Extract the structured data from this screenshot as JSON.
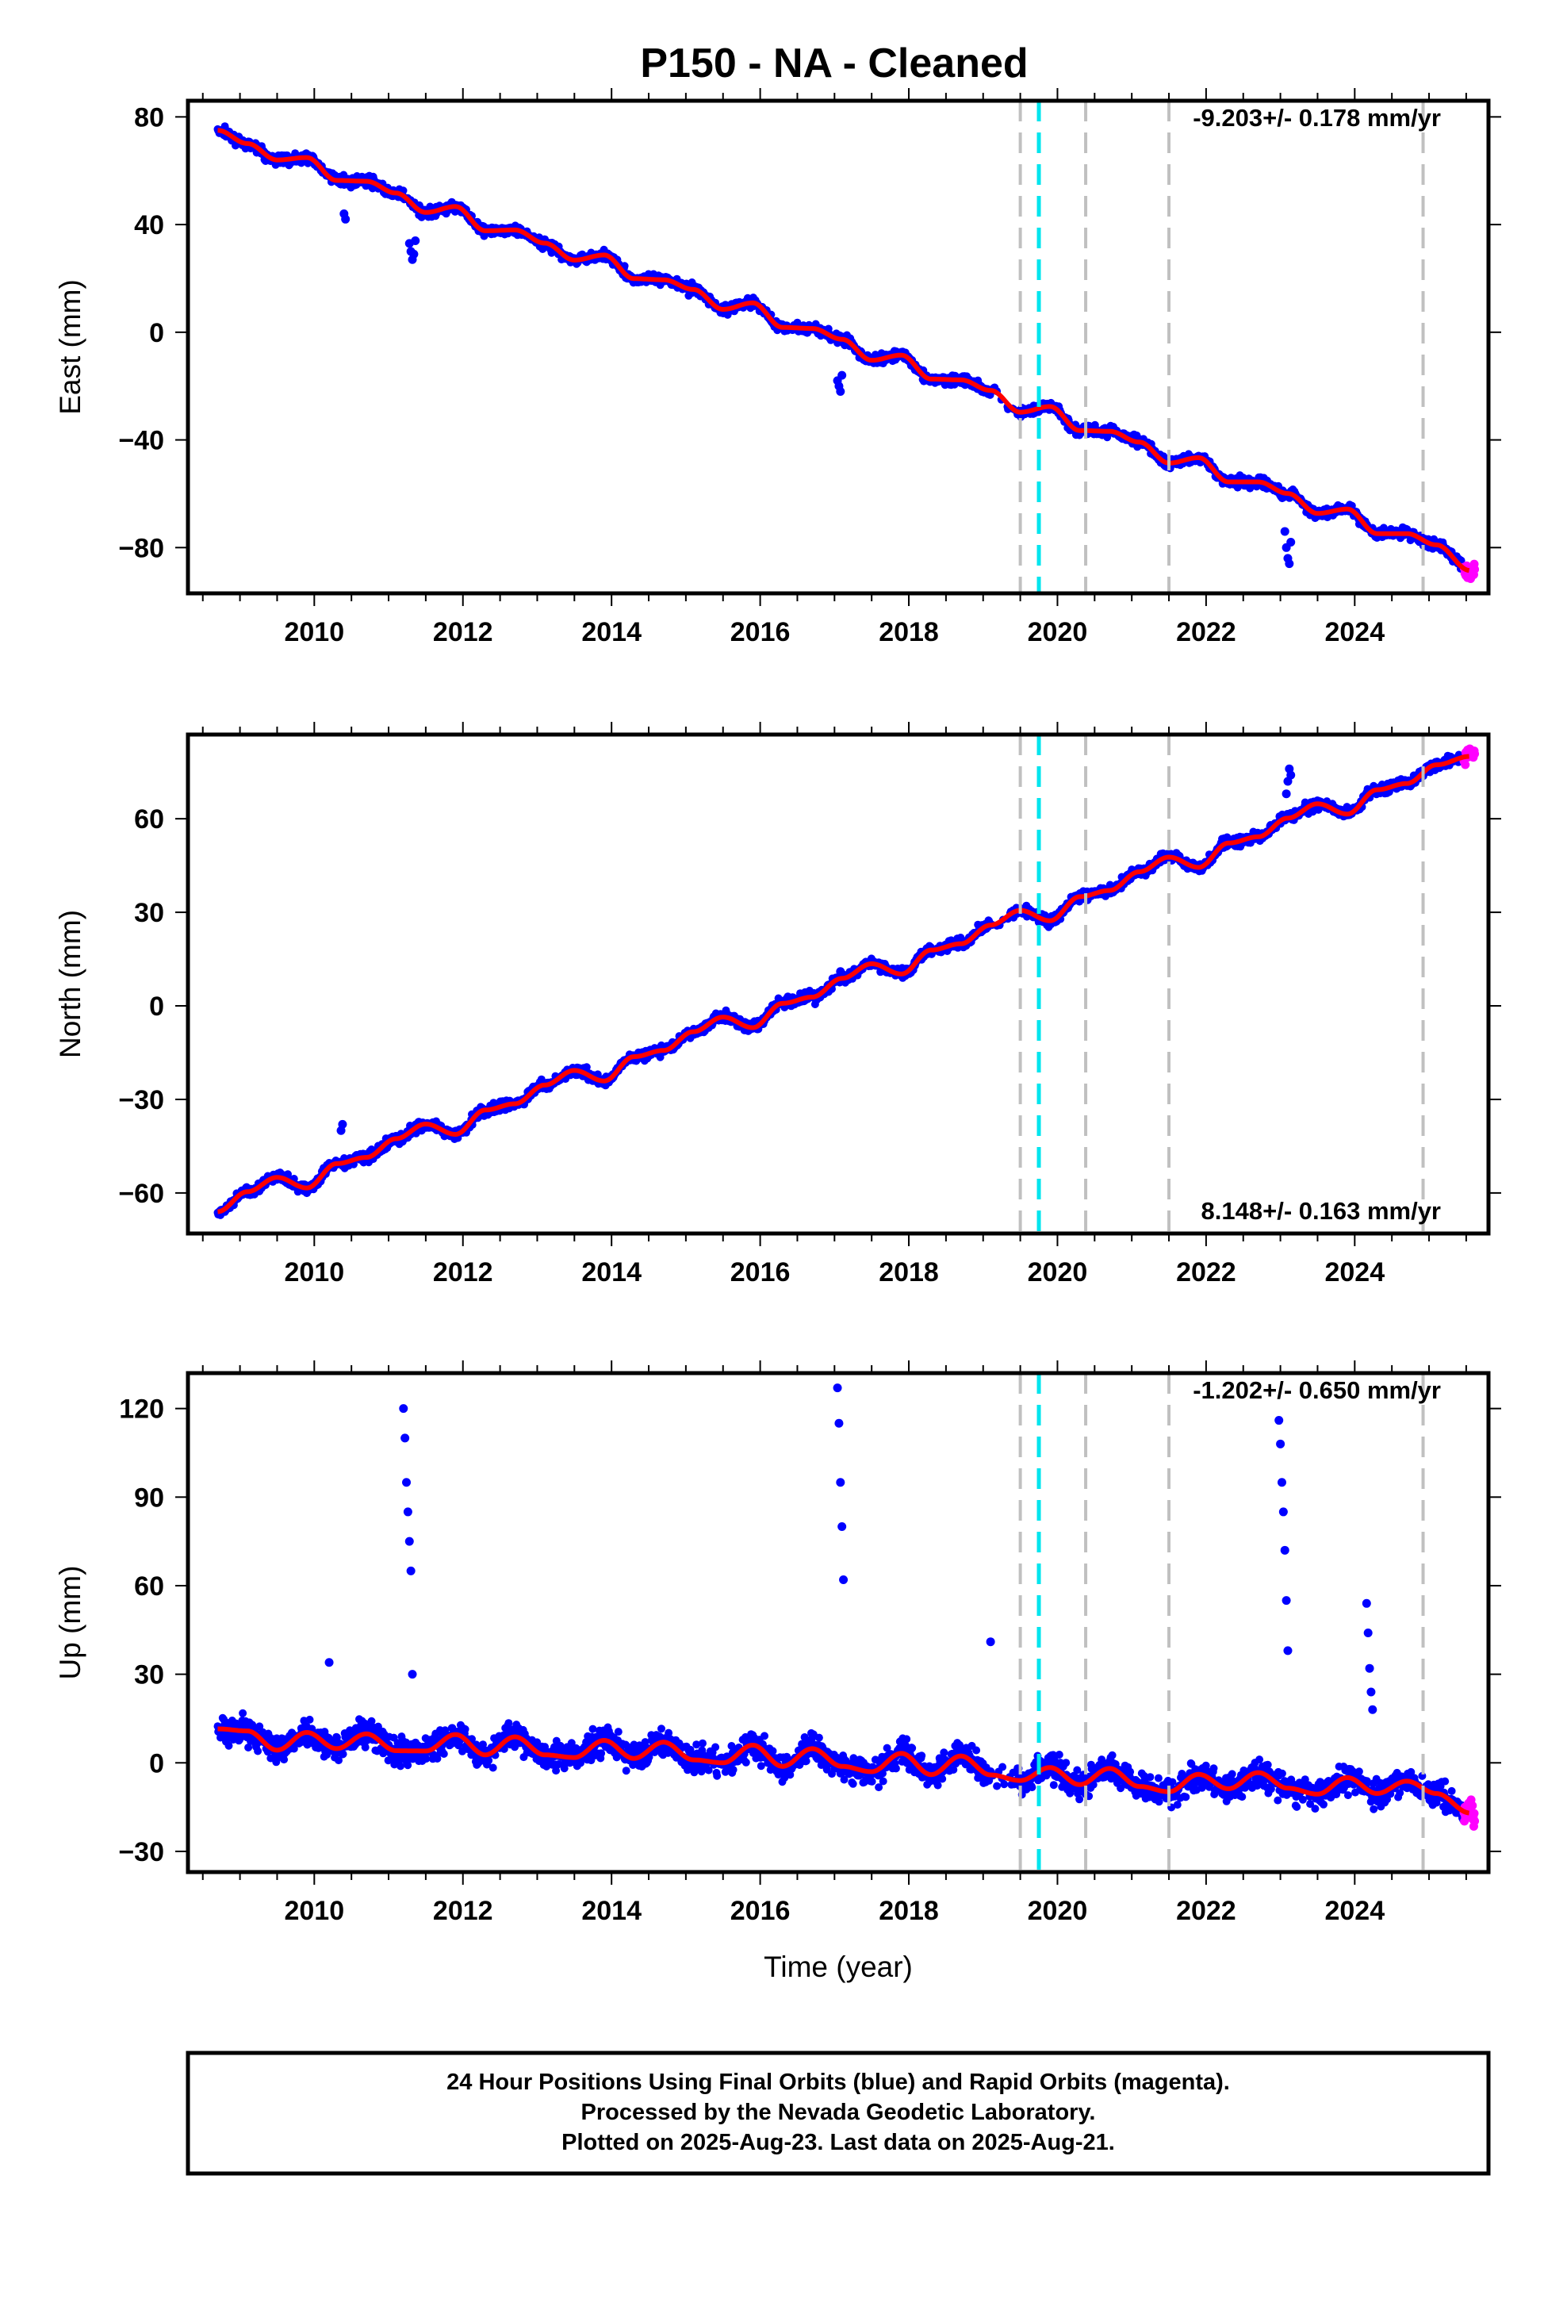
{
  "title": "P150  - NA - Cleaned",
  "colors": {
    "final_orbits": "#0000ff",
    "rapid_orbits": "#ff00ff",
    "model": "#ff0000",
    "antenna_change": "#00e5ee",
    "event_lines": "#c0c0c0"
  },
  "footer": {
    "line1": "24 Hour Positions Using Final Orbits (blue) and Rapid Orbits (magenta).",
    "line2": "Processed by the Nevada Geodetic Laboratory.",
    "line3": "Plotted on 2025-Aug-23. Last data on 2025-Aug-21."
  },
  "chart_data": [
    {
      "type": "scatter",
      "panel": "east",
      "ylabel": "East (mm)",
      "xlabel": "",
      "rate_label": "-9.203+/- 0.178 mm/yr",
      "rate_position": "top-right",
      "xlim": [
        2008.3,
        2025.8
      ],
      "ylim": [
        -97,
        86
      ],
      "xticks": [
        2010,
        2012,
        2014,
        2016,
        2018,
        2020,
        2022,
        2024
      ],
      "yticks": [
        80,
        40,
        0,
        -40,
        -80
      ],
      "ytick_labels": [
        "80",
        "40",
        "0",
        "−40",
        "−80"
      ],
      "series": [
        {
          "x": [
            2008.7,
            2009.1,
            2009.5,
            2009.9,
            2010.3,
            2010.7,
            2011.1,
            2011.5,
            2011.9,
            2012.3,
            2012.7,
            2013.1,
            2013.5,
            2013.9,
            2014.3,
            2014.7,
            2015.1,
            2015.5,
            2015.9,
            2016.3,
            2016.7,
            2017.1,
            2017.5,
            2017.9,
            2018.3,
            2018.7,
            2019.1,
            2019.5,
            2019.9,
            2020.3,
            2020.7,
            2021.1,
            2021.5,
            2021.9,
            2022.3,
            2022.7,
            2023.1,
            2023.5,
            2023.9,
            2024.3,
            2024.7,
            2025.1,
            2025.55
          ],
          "values": [
            75.0,
            70.1,
            64.0,
            64.9,
            56.4,
            56.1,
            51.7,
            44.5,
            46.7,
            37.7,
            38.0,
            33.1,
            26.8,
            28.7,
            19.9,
            19.5,
            15.9,
            8.5,
            10.9,
            1.8,
            1.4,
            -2.6,
            -10.4,
            -8.5,
            -17.4,
            -17.7,
            -21.6,
            -29.7,
            -27.6,
            -36.5,
            -36.8,
            -40.8,
            -48.6,
            -46.6,
            -55.6,
            -55.6,
            -59.9,
            -67.3,
            -65.7,
            -74.8,
            -74.8,
            -79.0,
            -88.5
          ]
        },
        {
          "x": [
            2011.28,
            2011.3,
            2011.32,
            2011.34,
            2011.36,
            2017.04,
            2017.06,
            2017.08,
            2017.1,
            2023.06,
            2023.08,
            2023.1,
            2023.12,
            2023.14,
            2010.4,
            2010.42
          ],
          "values": [
            33.0,
            30.0,
            27.0,
            29.0,
            34.0,
            -18.0,
            -20.0,
            -22.0,
            -16.0,
            -74.0,
            -80.0,
            -84.0,
            -86.0,
            -78.0,
            44.0,
            42.0
          ]
        }
      ]
    },
    {
      "type": "scatter",
      "panel": "north",
      "ylabel": "North (mm)",
      "xlabel": "",
      "rate_label": "8.148+/- 0.163 mm/yr",
      "rate_position": "bottom-right",
      "xlim": [
        2008.3,
        2025.8
      ],
      "ylim": [
        -73,
        87
      ],
      "xticks": [
        2010,
        2012,
        2014,
        2016,
        2018,
        2020,
        2022,
        2024
      ],
      "yticks": [
        60,
        30,
        0,
        -30,
        -60
      ],
      "ytick_labels": [
        "60",
        "30",
        "0",
        "−30",
        "−60"
      ],
      "series": [
        {
          "x": [
            2008.7,
            2009.1,
            2009.5,
            2009.9,
            2010.3,
            2010.7,
            2011.1,
            2011.5,
            2011.9,
            2012.3,
            2012.7,
            2013.1,
            2013.5,
            2013.9,
            2014.3,
            2014.7,
            2015.1,
            2015.5,
            2015.9,
            2016.3,
            2016.7,
            2017.1,
            2017.5,
            2017.9,
            2018.3,
            2018.7,
            2019.1,
            2019.5,
            2019.9,
            2020.3,
            2020.7,
            2021.1,
            2021.5,
            2021.9,
            2022.3,
            2022.7,
            2023.1,
            2023.5,
            2023.9,
            2024.3,
            2024.7,
            2025.1,
            2025.55
          ],
          "values": [
            -66.0,
            -59.6,
            -55.0,
            -58.4,
            -50.6,
            -48.6,
            -42.6,
            -37.9,
            -41.2,
            -33.4,
            -31.4,
            -25.4,
            -20.7,
            -24.1,
            -16.3,
            -14.3,
            -8.3,
            -3.6,
            -7.0,
            0.8,
            2.8,
            8.8,
            13.5,
            10.2,
            17.9,
            19.9,
            25.9,
            30.6,
            27.3,
            35.0,
            37.0,
            43.0,
            47.7,
            44.4,
            52.2,
            54.2,
            60.2,
            64.8,
            61.5,
            69.3,
            71.3,
            77.3,
            80.0
          ]
        },
        {
          "x": [
            2023.08,
            2023.1,
            2023.12,
            2023.14,
            2017.06,
            2017.08,
            2010.36,
            2010.38
          ],
          "values": [
            68.0,
            72.0,
            76.0,
            74.0,
            8.0,
            11.0,
            -40.0,
            -38.0
          ]
        }
      ]
    },
    {
      "type": "scatter",
      "panel": "up",
      "ylabel": "Up (mm)",
      "xlabel": "Time (year)",
      "rate_label": "-1.202+/- 0.650 mm/yr",
      "rate_position": "top-right",
      "xlim": [
        2008.3,
        2025.8
      ],
      "ylim": [
        -37,
        132
      ],
      "xticks": [
        2010,
        2012,
        2014,
        2016,
        2018,
        2020,
        2022,
        2024
      ],
      "yticks": [
        120,
        90,
        60,
        30,
        0,
        -30
      ],
      "ytick_labels": [
        "120",
        "90",
        "60",
        "30",
        "0",
        "−30"
      ],
      "series": [
        {
          "x": [
            2008.7,
            2009.1,
            2009.5,
            2009.9,
            2010.3,
            2010.7,
            2011.1,
            2011.5,
            2011.9,
            2012.3,
            2012.7,
            2013.1,
            2013.5,
            2013.9,
            2014.3,
            2014.7,
            2015.1,
            2015.5,
            2015.9,
            2016.3,
            2016.7,
            2017.1,
            2017.5,
            2017.9,
            2018.3,
            2018.7,
            2019.1,
            2019.5,
            2019.9,
            2020.3,
            2020.7,
            2021.1,
            2021.5,
            2021.9,
            2022.3,
            2022.7,
            2023.1,
            2023.5,
            2023.9,
            2024.3,
            2024.7,
            2025.1,
            2025.55
          ],
          "values": [
            11.5,
            10.8,
            4.3,
            10.3,
            4.8,
            9.8,
            4.1,
            4.0,
            9.6,
            2.7,
            8.8,
            2.7,
            1.8,
            7.6,
            1.5,
            7.0,
            1.0,
            0.0,
            6.0,
            -1.2,
            4.8,
            -1.2,
            -3.0,
            3.2,
            -4.0,
            2.3,
            -4.1,
            -6.0,
            -1.6,
            -7.4,
            -1.9,
            -8.0,
            -9.8,
            -3.9,
            -8.8,
            -3.3,
            -8.6,
            -10.6,
            -5.0,
            -10.4,
            -6.2,
            -10.4,
            -17.0
          ]
        },
        {
          "x": [
            2011.2,
            2011.22,
            2011.24,
            2011.26,
            2011.28,
            2011.3,
            2011.32,
            2017.04,
            2017.06,
            2017.08,
            2017.1,
            2017.12,
            2022.98,
            2023.0,
            2023.02,
            2023.04,
            2023.06,
            2023.08,
            2023.1,
            2024.16,
            2024.18,
            2024.2,
            2024.22,
            2024.24,
            2019.1,
            2010.2
          ],
          "values": [
            120.0,
            110.0,
            95.0,
            85.0,
            75.0,
            65.0,
            30.0,
            127.0,
            115.0,
            95.0,
            80.0,
            62.0,
            116.0,
            108.0,
            95.0,
            85.0,
            72.0,
            55.0,
            38.0,
            54.0,
            44.0,
            32.0,
            24.0,
            18.0,
            41.0,
            34.0
          ]
        }
      ]
    }
  ],
  "panels": [
    {
      "ylabel": "East (mm)",
      "rate": "-9.203+/- 0.178 mm/yr"
    },
    {
      "ylabel": "North (mm)",
      "rate": "8.148+/- 0.163 mm/yr"
    },
    {
      "ylabel": "Up (mm)",
      "rate": "-1.202+/- 0.650 mm/yr",
      "xlabel": "Time (year)"
    }
  ],
  "xtick_labels": [
    "2010",
    "2012",
    "2014",
    "2016",
    "2018",
    "2020",
    "2022",
    "2024"
  ],
  "event_lines": {
    "gray_dashed_years": [
      2019.5,
      2020.38,
      2021.5,
      2024.92
    ],
    "cyan_dashed_years": [
      2019.75
    ]
  }
}
